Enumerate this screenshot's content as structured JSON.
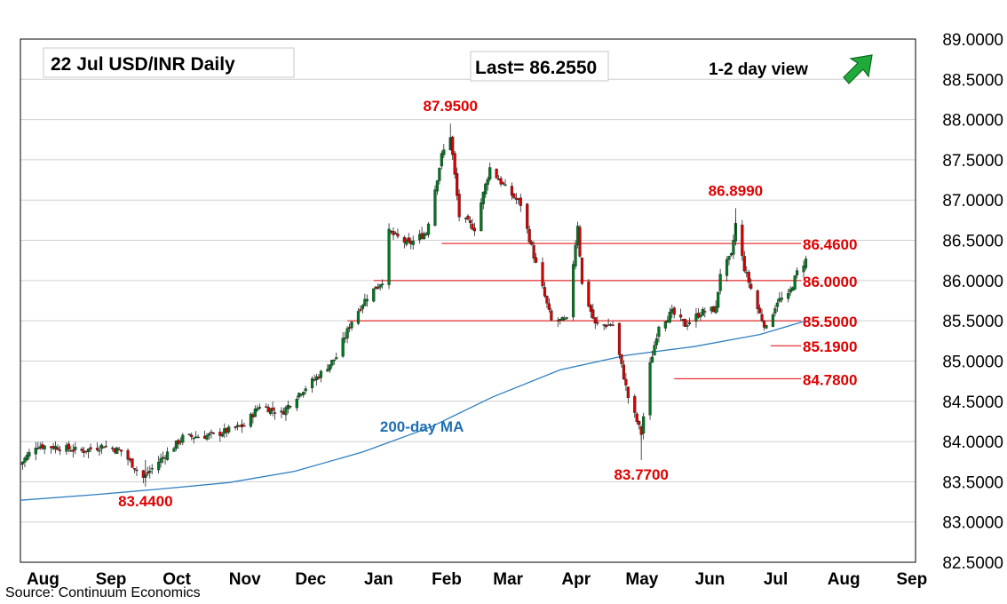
{
  "header": {
    "title": "22 Jul  USD/INR  Daily",
    "last": "Last= 86.2550",
    "view": "1-2 day view",
    "view_icon": "up-right-arrow-icon"
  },
  "source": "Source: Continuum Economics",
  "colors": {
    "candle_up": "#007a1f",
    "candle_down": "#d90000",
    "level_line": "#e00000",
    "level_text": "#e00000",
    "ma": "#2f7fc1",
    "ma_label": "#1f6fb2",
    "grid": "#d0d0d0",
    "arrow": "#1faa3a"
  },
  "chart_data": {
    "type": "candlestick",
    "y_range": [
      82.5,
      89.0
    ],
    "y_ticks": [
      "82.5000",
      "83.0000",
      "83.5000",
      "84.0000",
      "84.5000",
      "85.0000",
      "85.5000",
      "86.0000",
      "86.5000",
      "87.0000",
      "87.5000",
      "88.0000",
      "88.5000",
      "89.0000"
    ],
    "x_range": [
      "2024-07-29",
      "2025-09-10"
    ],
    "x_ticks": [
      {
        "label": "Aug",
        "date": "2024-08-01"
      },
      {
        "label": "Sep",
        "date": "2024-09-01"
      },
      {
        "label": "Oct",
        "date": "2024-10-01"
      },
      {
        "label": "Nov",
        "date": "2024-11-01"
      },
      {
        "label": "Dec",
        "date": "2024-12-01"
      },
      {
        "label": "Jan",
        "date": "2025-01-01"
      },
      {
        "label": "Feb",
        "date": "2025-02-01"
      },
      {
        "label": "Mar",
        "date": "2025-03-01"
      },
      {
        "label": "Apr",
        "date": "2025-04-01"
      },
      {
        "label": "May",
        "date": "2025-05-01"
      },
      {
        "label": "Jun",
        "date": "2025-06-01"
      },
      {
        "label": "Jul",
        "date": "2025-07-01"
      },
      {
        "label": "Aug",
        "date": "2025-08-01"
      },
      {
        "label": "Sep",
        "date": "2025-09-01"
      }
    ],
    "grid": true,
    "levels": [
      {
        "value": 86.46,
        "label": "86.4600",
        "from": "2025-02-06"
      },
      {
        "value": 86.0,
        "label": "86.0000",
        "from": "2025-01-06"
      },
      {
        "value": 85.5,
        "label": "85.5000",
        "from": "2024-12-25"
      },
      {
        "value": 85.19,
        "label": "85.1900",
        "from": "2025-07-06"
      },
      {
        "value": 84.78,
        "label": "84.7800",
        "from": "2025-05-23"
      }
    ],
    "annotations": [
      {
        "text": "87.9500",
        "date": "2025-02-10",
        "value": 87.95,
        "pos": "above"
      },
      {
        "text": "86.8990",
        "date": "2025-06-20",
        "value": 86.899,
        "pos": "above"
      },
      {
        "text": "83.7700",
        "date": "2025-05-08",
        "value": 83.77,
        "pos": "below"
      },
      {
        "text": "83.4400",
        "date": "2024-09-24",
        "value": 83.44,
        "pos": "below"
      }
    ],
    "ma": {
      "label": "200-day MA",
      "label_date": "2025-01-28",
      "label_value": 84.12,
      "points": [
        [
          "2024-07-29",
          83.27
        ],
        [
          "2024-09-01",
          83.34
        ],
        [
          "2024-10-01",
          83.41
        ],
        [
          "2024-11-01",
          83.49
        ],
        [
          "2024-12-01",
          83.63
        ],
        [
          "2025-01-01",
          83.87
        ],
        [
          "2025-02-01",
          84.18
        ],
        [
          "2025-03-01",
          84.55
        ],
        [
          "2025-04-01",
          84.89
        ],
        [
          "2025-05-01",
          85.07
        ],
        [
          "2025-06-01",
          85.18
        ],
        [
          "2025-07-01",
          85.33
        ],
        [
          "2025-07-22",
          85.5
        ]
      ]
    },
    "ohlc_anchors": [
      [
        "2024-07-29",
        83.72
      ],
      [
        "2024-08-05",
        83.95
      ],
      [
        "2024-08-15",
        83.93
      ],
      [
        "2024-08-26",
        83.88
      ],
      [
        "2024-09-05",
        83.95
      ],
      [
        "2024-09-13",
        83.88
      ],
      [
        "2024-09-23",
        83.55
      ],
      [
        "2024-09-30",
        83.75
      ],
      [
        "2024-10-11",
        84.05
      ],
      [
        "2024-10-25",
        84.08
      ],
      [
        "2024-11-08",
        84.2
      ],
      [
        "2024-11-15",
        84.45
      ],
      [
        "2024-11-25",
        84.35
      ],
      [
        "2024-12-03",
        84.6
      ],
      [
        "2024-12-12",
        84.82
      ],
      [
        "2024-12-20",
        85.05
      ],
      [
        "2024-12-27",
        85.5
      ],
      [
        "2025-01-03",
        85.8
      ],
      [
        "2025-01-10",
        86.0
      ],
      [
        "2025-01-13",
        86.6
      ],
      [
        "2025-01-22",
        86.45
      ],
      [
        "2025-01-30",
        86.6
      ],
      [
        "2025-02-06",
        87.55
      ],
      [
        "2025-02-10",
        87.8
      ],
      [
        "2025-02-14",
        86.8
      ],
      [
        "2025-02-21",
        86.65
      ],
      [
        "2025-02-28",
        87.4
      ],
      [
        "2025-03-07",
        87.15
      ],
      [
        "2025-03-14",
        86.95
      ],
      [
        "2025-03-21",
        86.2
      ],
      [
        "2025-03-28",
        85.5
      ],
      [
        "2025-04-04",
        85.5
      ],
      [
        "2025-04-09",
        86.7
      ],
      [
        "2025-04-11",
        85.95
      ],
      [
        "2025-04-17",
        85.45
      ],
      [
        "2025-04-25",
        85.45
      ],
      [
        "2025-05-02",
        84.55
      ],
      [
        "2025-05-08",
        84.1
      ],
      [
        "2025-05-12",
        84.95
      ],
      [
        "2025-05-16",
        85.45
      ],
      [
        "2025-05-22",
        85.6
      ],
      [
        "2025-05-28",
        85.45
      ],
      [
        "2025-06-04",
        85.6
      ],
      [
        "2025-06-11",
        85.65
      ],
      [
        "2025-06-13",
        86.1
      ],
      [
        "2025-06-18",
        86.3
      ],
      [
        "2025-06-20",
        86.7
      ],
      [
        "2025-06-24",
        86.15
      ],
      [
        "2025-06-30",
        85.65
      ],
      [
        "2025-07-04",
        85.4
      ],
      [
        "2025-07-09",
        85.75
      ],
      [
        "2025-07-14",
        85.8
      ],
      [
        "2025-07-18",
        86.1
      ],
      [
        "2025-07-22",
        86.255
      ]
    ]
  }
}
